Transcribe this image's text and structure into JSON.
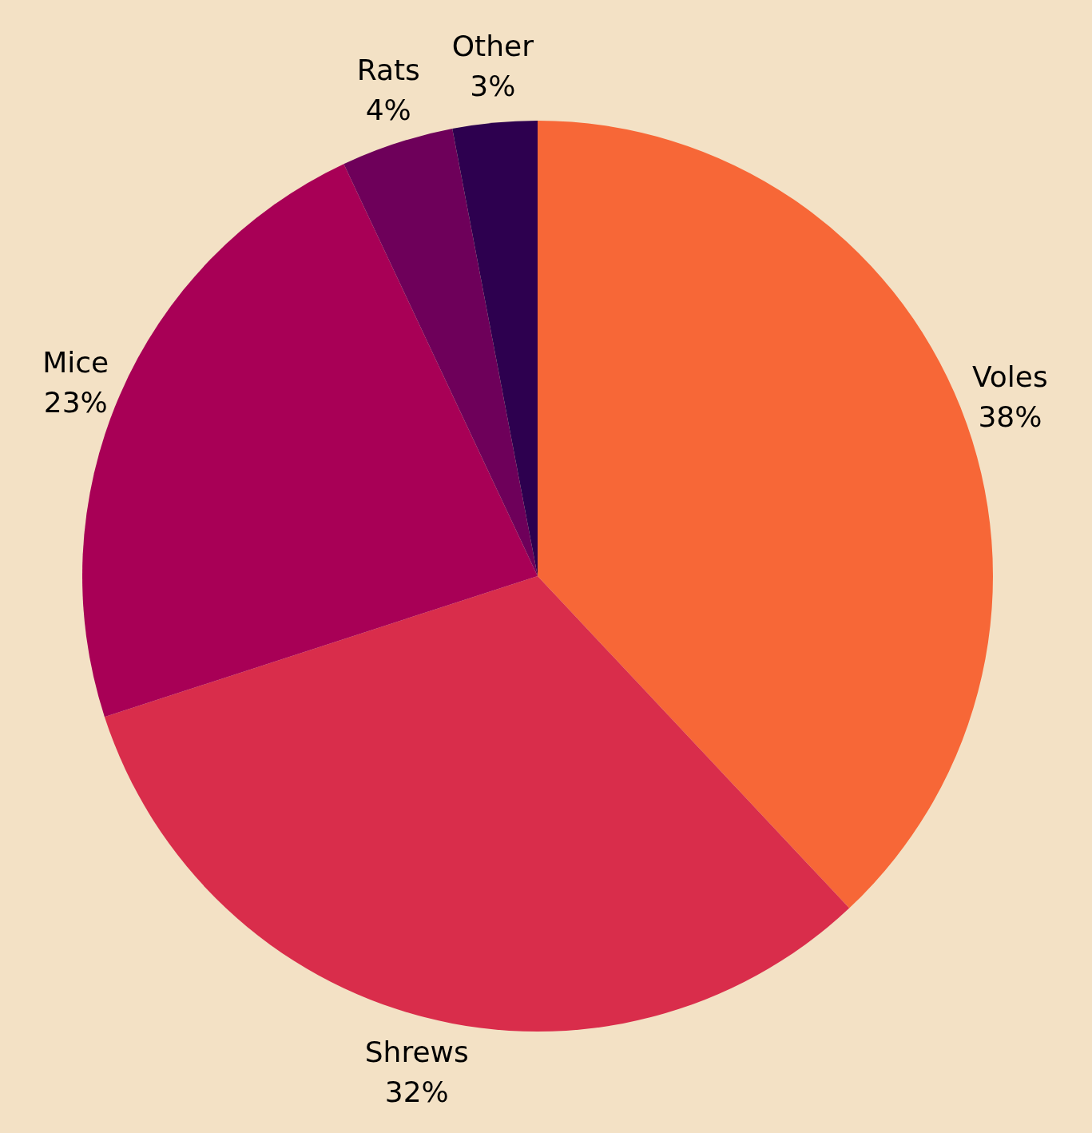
{
  "chart_data": {
    "type": "pie",
    "categories": [
      "Voles",
      "Shrews",
      "Mice",
      "Rats",
      "Other"
    ],
    "values": [
      38,
      32,
      23,
      4,
      3
    ],
    "value_labels": [
      "38%",
      "32%",
      "23%",
      "4%",
      "3%"
    ],
    "colors": [
      "#f76737",
      "#d92d4b",
      "#a80056",
      "#6e005a",
      "#2d004f"
    ]
  }
}
